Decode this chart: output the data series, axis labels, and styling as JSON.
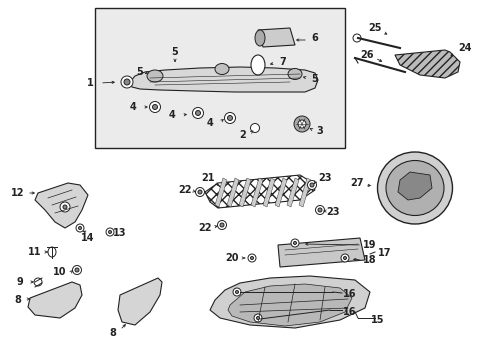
{
  "bg_color": "#ffffff",
  "box_bg": "#e8e8e8",
  "fig_width": 4.89,
  "fig_height": 3.6,
  "dpi": 100,
  "line_color": "#222222",
  "label_fontsize": 7.0
}
